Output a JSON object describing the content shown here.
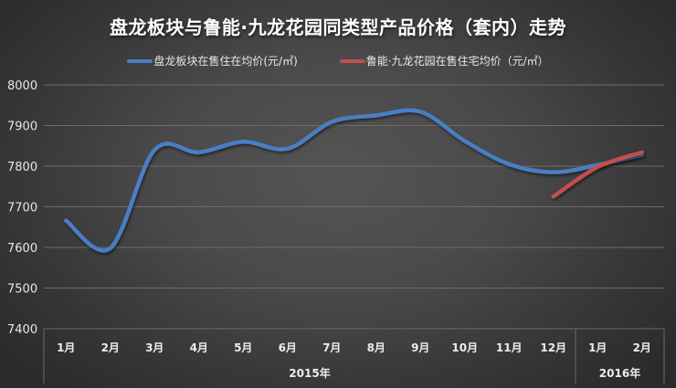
{
  "chart_data": {
    "type": "line",
    "title": "盘龙板块与鲁能·九龙花园同类型产品价格（套内）走势",
    "xlabel": "",
    "ylabel": "",
    "ylim": [
      7400,
      8000
    ],
    "yticks": [
      7400,
      7500,
      7600,
      7700,
      7800,
      7900,
      8000
    ],
    "grid": true,
    "legend_position": "top",
    "categories": [
      "1月",
      "2月",
      "3月",
      "4月",
      "5月",
      "6月",
      "7月",
      "8月",
      "9月",
      "10月",
      "11月",
      "12月",
      "1月",
      "2月"
    ],
    "category_groups": [
      {
        "label": "2015年",
        "start": 0,
        "end": 11
      },
      {
        "label": "2016年",
        "start": 12,
        "end": 13
      }
    ],
    "series": [
      {
        "name": "盘龙板块在售住在均价(元/㎡)",
        "color": "#4A7EC4",
        "values": [
          7666,
          7598,
          7840,
          7834,
          7860,
          7843,
          7909,
          7925,
          7934,
          7862,
          7805,
          7785,
          7803,
          7828
        ]
      },
      {
        "name": "鲁能·九龙花园在售住宅均价（元/㎡）",
        "color": "#C0504D",
        "values": [
          null,
          null,
          null,
          null,
          null,
          null,
          null,
          null,
          null,
          null,
          null,
          7725,
          7798,
          7834
        ]
      }
    ]
  },
  "title": "盘龙板块与鲁能·九龙花园同类型产品价格（套内）走势",
  "legend": [
    {
      "label": "盘龙板块在售住在均价(元/㎡)",
      "color": "#4A7EC4"
    },
    {
      "label": "鲁能·九龙花园在售住宅均价（元/㎡）",
      "color": "#C0504D"
    }
  ]
}
